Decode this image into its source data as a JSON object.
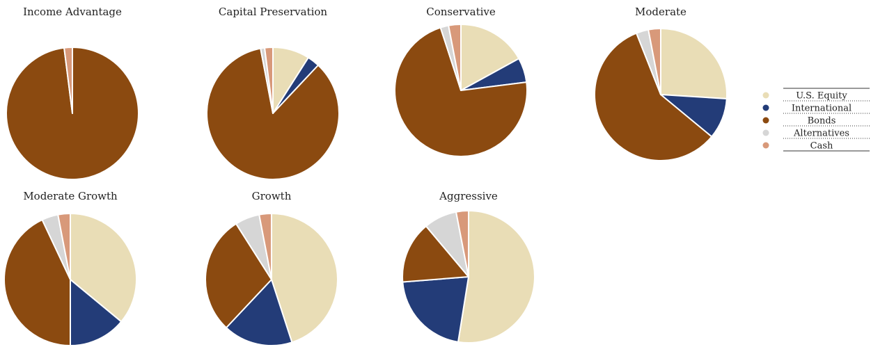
{
  "chart_data": {
    "type": "pie",
    "legend_position": "right",
    "legend": [
      {
        "key": "us_equity",
        "label": "U.S. Equity",
        "color": "#E9DDB6"
      },
      {
        "key": "international",
        "label": "International",
        "color": "#233C78"
      },
      {
        "key": "bonds",
        "label": "Bonds",
        "color": "#8B4A10"
      },
      {
        "key": "alternatives",
        "label": "Alternatives",
        "color": "#D6D6D6"
      },
      {
        "key": "cash",
        "label": "Cash",
        "color": "#D8997A"
      }
    ],
    "portfolios": [
      {
        "title": "Income Advantage",
        "values": [
          0,
          0,
          98,
          0,
          2
        ]
      },
      {
        "title": "Capital Preservation",
        "values": [
          9,
          3,
          85,
          1,
          2
        ]
      },
      {
        "title": "Conservative",
        "values": [
          17,
          6,
          72,
          2,
          3
        ]
      },
      {
        "title": "Moderate",
        "values": [
          26,
          10,
          58,
          3,
          3
        ]
      },
      {
        "title": "Moderate Growth",
        "values": [
          36,
          14,
          43,
          4,
          3
        ]
      },
      {
        "title": "Growth",
        "values": [
          45,
          17,
          29,
          6,
          3
        ]
      },
      {
        "title": "Aggressive",
        "values": [
          52,
          21,
          15,
          8,
          3
        ]
      }
    ]
  }
}
